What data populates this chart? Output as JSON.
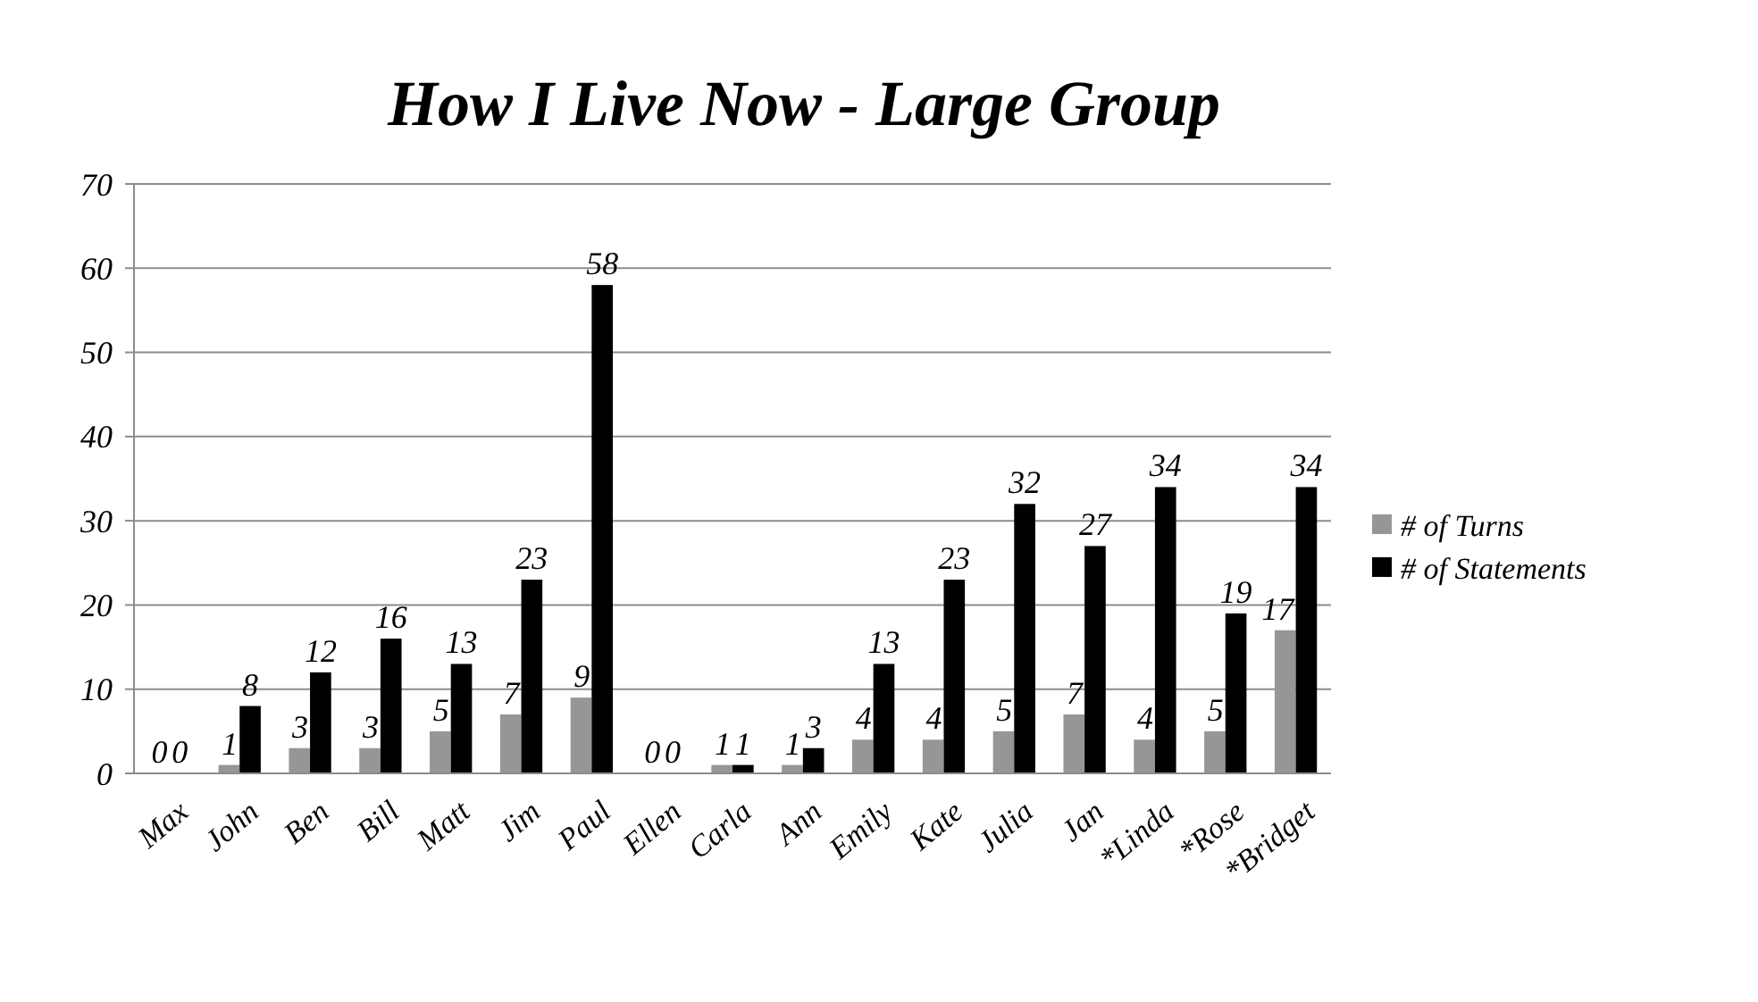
{
  "chart_data": {
    "type": "bar",
    "title": "How I Live Now - Large Group",
    "categories": [
      "Max",
      "John",
      "Ben",
      "Bill",
      "Matt",
      "Jim",
      "Paul",
      "Ellen",
      "Carla",
      "Ann",
      "Emily",
      "Kate",
      "Julia",
      "Jan",
      "*Linda",
      "*Rose",
      "*Bridget"
    ],
    "series": [
      {
        "name": "# of Turns",
        "color": "#969696",
        "values": [
          0,
          1,
          3,
          3,
          5,
          7,
          9,
          0,
          1,
          1,
          4,
          4,
          5,
          7,
          4,
          5,
          17
        ]
      },
      {
        "name": "# of Statements",
        "color": "#000000",
        "values": [
          0,
          8,
          12,
          16,
          13,
          23,
          58,
          0,
          1,
          3,
          13,
          23,
          32,
          27,
          34,
          19,
          34
        ]
      }
    ],
    "ylim": [
      0,
      70
    ],
    "yticks": [
      0,
      10,
      20,
      30,
      40,
      50,
      60,
      70
    ],
    "grid": "y",
    "legend": "right",
    "data_labels": true
  }
}
